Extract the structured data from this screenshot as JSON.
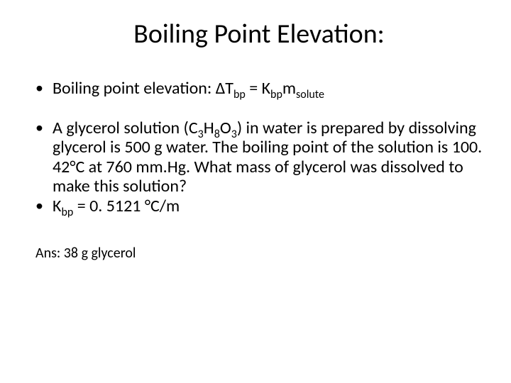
{
  "title": "Boiling Point Elevation:",
  "bullets": {
    "equation_prefix": "Boiling point elevation: ΔT",
    "equation_sub1": "bp",
    "equation_mid": " = K",
    "equation_sub2": "bp",
    "equation_mid2": "m",
    "equation_sub3": "solute",
    "problem_p1": "A glycerol solution (C",
    "problem_s1": "3",
    "problem_p2": "H",
    "problem_s2": "8",
    "problem_p3": "O",
    "problem_s3": "3",
    "problem_p4": ") in water is prepared by dissolving glycerol is 500 g water.  The boiling point of the solution is 100. 42°C at 760 mm.Hg.  What mass of glycerol was dissolved to make this solution?",
    "kbp_p1": "K",
    "kbp_s1": "bp",
    "kbp_p2": " = 0. 5121 °C/m"
  },
  "answer": "Ans:  38 g glycerol",
  "colors": {
    "background": "#ffffff",
    "text": "#000000"
  },
  "fontsizes": {
    "title": 38,
    "body": 24,
    "subscript": 16,
    "answer": 20
  }
}
